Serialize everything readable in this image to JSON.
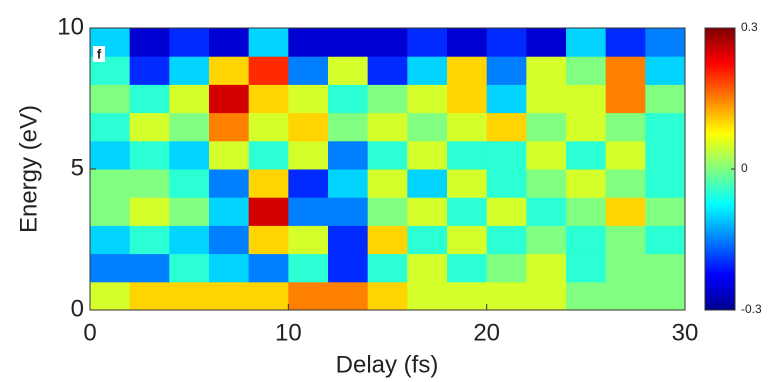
{
  "chart_data": {
    "type": "heatmap",
    "panel_label": "f",
    "xlabel": "Delay (fs)",
    "ylabel": "Energy (eV)",
    "xlim": [
      0,
      30
    ],
    "ylim": [
      0,
      10
    ],
    "xticks": [
      0,
      10,
      20,
      30
    ],
    "yticks": [
      0,
      5,
      10
    ],
    "colormap": "jet",
    "zlim": [
      -0.3,
      0.3
    ],
    "zticks": [
      -0.3,
      0,
      0.3
    ],
    "z": [
      [
        0.05,
        0.1,
        0.1,
        0.1,
        0.1,
        0.15,
        0.15,
        0.1,
        0.05,
        0.05,
        0.05,
        0.05,
        0.0,
        0.0,
        0.0
      ],
      [
        -0.15,
        -0.15,
        -0.05,
        -0.1,
        -0.15,
        -0.05,
        -0.2,
        -0.05,
        0.05,
        -0.05,
        0.0,
        0.05,
        -0.05,
        0.0,
        0.0
      ],
      [
        -0.1,
        -0.05,
        -0.1,
        -0.15,
        0.1,
        0.05,
        -0.2,
        0.1,
        -0.05,
        0.05,
        -0.05,
        0.0,
        -0.05,
        0.0,
        -0.05
      ],
      [
        0.0,
        0.05,
        0.0,
        -0.1,
        0.25,
        -0.15,
        -0.15,
        0.0,
        0.05,
        -0.05,
        0.05,
        -0.05,
        0.0,
        0.1,
        0.0
      ],
      [
        0.0,
        0.0,
        -0.05,
        -0.15,
        0.1,
        -0.2,
        -0.1,
        0.05,
        -0.1,
        0.05,
        -0.05,
        0.0,
        0.05,
        0.0,
        -0.05
      ],
      [
        -0.1,
        -0.05,
        -0.1,
        0.05,
        -0.05,
        0.05,
        -0.15,
        -0.05,
        0.05,
        -0.05,
        -0.05,
        0.05,
        -0.05,
        0.05,
        -0.05
      ],
      [
        -0.05,
        0.05,
        0.0,
        0.15,
        0.05,
        0.1,
        0.0,
        0.05,
        0.0,
        0.05,
        0.1,
        0.0,
        0.05,
        0.0,
        -0.05
      ],
      [
        0.0,
        -0.05,
        0.05,
        0.25,
        0.1,
        0.05,
        -0.05,
        0.0,
        0.05,
        0.1,
        -0.1,
        0.05,
        0.05,
        0.15,
        0.0
      ],
      [
        -0.05,
        -0.2,
        -0.1,
        0.1,
        0.2,
        -0.15,
        0.05,
        -0.2,
        -0.1,
        0.1,
        -0.15,
        0.05,
        0.0,
        0.15,
        -0.1
      ],
      [
        -0.1,
        -0.25,
        -0.2,
        -0.25,
        -0.1,
        -0.25,
        -0.25,
        -0.25,
        -0.2,
        -0.25,
        -0.2,
        -0.25,
        -0.1,
        -0.2,
        -0.15
      ]
    ]
  }
}
